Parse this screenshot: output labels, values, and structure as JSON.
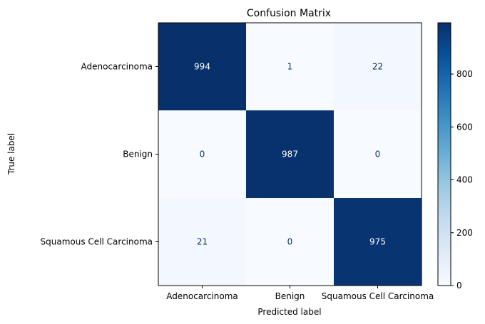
{
  "chart_data": {
    "type": "heatmap",
    "title": "Confusion Matrix",
    "xlabel": "Predicted label",
    "ylabel": "True label",
    "row_labels": [
      "Adenocarcinoma",
      "Benign",
      "Squamous Cell Carcinoma"
    ],
    "col_labels": [
      "Adenocarcinoma",
      "Benign",
      "Squamous Cell Carcinoma"
    ],
    "values": [
      [
        994,
        1,
        22
      ],
      [
        0,
        987,
        0
      ],
      [
        21,
        0,
        975
      ]
    ],
    "colormap": "Blues",
    "colorbar": {
      "range": [
        0,
        994
      ],
      "ticks": [
        0,
        200,
        400,
        600,
        800
      ]
    },
    "grid": false
  }
}
